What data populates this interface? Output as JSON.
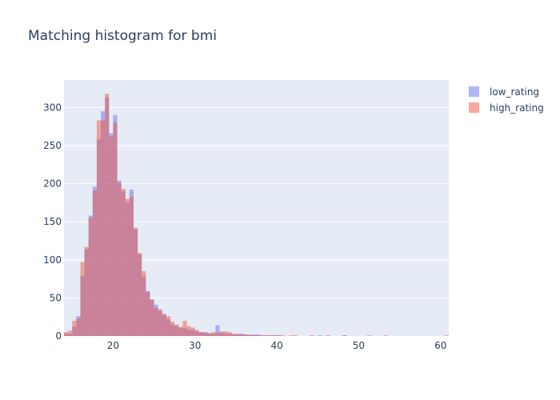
{
  "chart_data": {
    "type": "bar",
    "title": "Matching histogram for bmi",
    "xlabel": "",
    "ylabel": "",
    "xlim": [
      14,
      61
    ],
    "ylim": [
      0,
      336
    ],
    "x_ticks": [
      20,
      30,
      40,
      50,
      60
    ],
    "x_tick_labels": [
      "20",
      "30",
      "40",
      "50",
      "60"
    ],
    "y_ticks": [
      0,
      50,
      100,
      150,
      200,
      250,
      300
    ],
    "y_tick_labels": [
      "0",
      "50",
      "100",
      "150",
      "200",
      "250",
      "300"
    ],
    "bin_start": 14.0,
    "bin_width": 0.5,
    "grid": true,
    "barmode": "overlay",
    "legend_position": "top-right",
    "series": [
      {
        "name": "low_rating",
        "color": "#636efa",
        "opacity": 0.5,
        "values": [
          3,
          3,
          12,
          26,
          79,
          114,
          158,
          196,
          258,
          295,
          313,
          266,
          290,
          204,
          190,
          175,
          192,
          140,
          107,
          78,
          59,
          48,
          41,
          33,
          28,
          22,
          15,
          13,
          11,
          10,
          8,
          8,
          6,
          5,
          5,
          3,
          3,
          14,
          4,
          3,
          3,
          2,
          2,
          3,
          2,
          1,
          2,
          2,
          1,
          1,
          1,
          1,
          1,
          0,
          0,
          0,
          0,
          0,
          0,
          0,
          0,
          0,
          1,
          0,
          0,
          0,
          0,
          0,
          1,
          0,
          0,
          0,
          0,
          0,
          0,
          0,
          0,
          0,
          0,
          0,
          0,
          0,
          0,
          0,
          0,
          0,
          0,
          0,
          0,
          0,
          0,
          0,
          0,
          0
        ]
      },
      {
        "name": "high_rating",
        "color": "#ef553b",
        "opacity": 0.5,
        "values": [
          5,
          7,
          20,
          23,
          97,
          117,
          155,
          191,
          283,
          283,
          318,
          262,
          280,
          201,
          193,
          180,
          183,
          142,
          109,
          85,
          58,
          48,
          37,
          35,
          29,
          26,
          19,
          15,
          12,
          20,
          13,
          11,
          8,
          5,
          4,
          4,
          5,
          4,
          6,
          6,
          5,
          3,
          3,
          2,
          2,
          2,
          1,
          1,
          1,
          1,
          1,
          1,
          1,
          1,
          0,
          1,
          1,
          0,
          0,
          0,
          1,
          0,
          0,
          0,
          1,
          0,
          0,
          0,
          1,
          0,
          0,
          0,
          0,
          0,
          1,
          0,
          0,
          0,
          1,
          0,
          0,
          0,
          0,
          0,
          0,
          0,
          0,
          0,
          0,
          0,
          0,
          0,
          0,
          1
        ]
      }
    ]
  }
}
